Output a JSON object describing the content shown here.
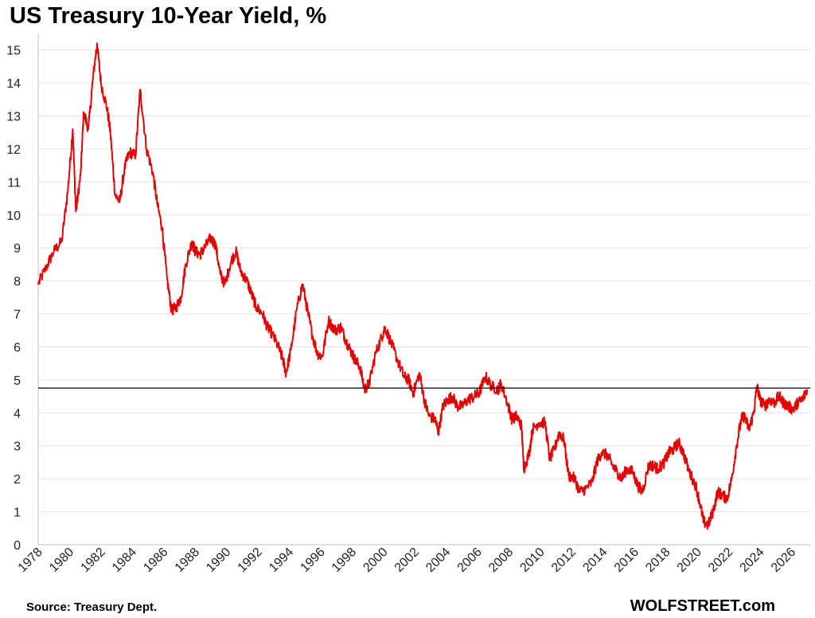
{
  "chart_data": {
    "type": "line",
    "title": "US Treasury 10-Year Yield, %",
    "xlabel": "",
    "ylabel": "",
    "ylim": [
      0,
      15.5
    ],
    "xlim": [
      1978,
      2027.2
    ],
    "y_ticks": [
      "0",
      "1",
      "2",
      "3",
      "4",
      "5",
      "6",
      "7",
      "8",
      "9",
      "10",
      "11",
      "12",
      "13",
      "14",
      "15"
    ],
    "x_ticks": [
      "1978",
      "1980",
      "1982",
      "1984",
      "1986",
      "1988",
      "1990",
      "1992",
      "1994",
      "1996",
      "1998",
      "2000",
      "2002",
      "2004",
      "2006",
      "2008",
      "2010",
      "2012",
      "2014",
      "2016",
      "2018",
      "2020",
      "2022",
      "2024",
      "2026"
    ],
    "grid": "horizontal",
    "reference_line": {
      "y": 4.75,
      "color": "#000000"
    },
    "series": [
      {
        "color": "#e60000",
        "x": [
          1978.0,
          1978.5,
          1979.0,
          1979.5,
          1979.9,
          1980.2,
          1980.4,
          1980.7,
          1980.9,
          1981.2,
          1981.5,
          1981.75,
          1982.0,
          1982.4,
          1982.6,
          1982.9,
          1983.2,
          1983.5,
          1983.8,
          1984.2,
          1984.5,
          1984.9,
          1985.3,
          1985.6,
          1985.9,
          1986.2,
          1986.5,
          1986.8,
          1987.1,
          1987.4,
          1987.8,
          1988.0,
          1988.3,
          1988.6,
          1989.0,
          1989.3,
          1989.6,
          1989.9,
          1990.3,
          1990.6,
          1990.9,
          1991.3,
          1991.6,
          1991.9,
          1992.3,
          1992.6,
          1992.9,
          1993.3,
          1993.6,
          1993.8,
          1994.1,
          1994.5,
          1994.85,
          1995.2,
          1995.5,
          1995.8,
          1996.1,
          1996.5,
          1996.9,
          1997.3,
          1997.6,
          1997.9,
          1998.2,
          1998.5,
          1998.8,
          1999.1,
          1999.5,
          1999.9,
          2000.1,
          2000.5,
          2000.9,
          2001.3,
          2001.6,
          2001.9,
          2002.3,
          2002.6,
          2002.9,
          2003.3,
          2003.5,
          2003.8,
          2004.1,
          2004.4,
          2004.7,
          2005.0,
          2005.4,
          2005.8,
          2006.1,
          2006.5,
          2006.9,
          2007.3,
          2007.5,
          2007.9,
          2008.2,
          2008.5,
          2008.8,
          2008.95,
          2009.3,
          2009.5,
          2009.9,
          2010.3,
          2010.6,
          2010.9,
          2011.2,
          2011.5,
          2011.8,
          2012.2,
          2012.5,
          2012.9,
          2013.3,
          2013.6,
          2013.9,
          2014.3,
          2014.6,
          2014.9,
          2015.2,
          2015.5,
          2015.9,
          2016.2,
          2016.5,
          2016.9,
          2017.2,
          2017.5,
          2017.9,
          2018.2,
          2018.5,
          2018.8,
          2019.1,
          2019.5,
          2019.9,
          2020.2,
          2020.4,
          2020.7,
          2021.0,
          2021.3,
          2021.6,
          2021.9,
          2022.2,
          2022.5,
          2022.8,
          2023.0,
          2023.3,
          2023.6,
          2023.8,
          2024.0,
          2024.3,
          2024.6,
          2024.9,
          2025.2,
          2025.5,
          2025.8,
          2026.1,
          2026.4,
          2026.7,
          2027.0
        ],
        "values": [
          7.9,
          8.4,
          8.9,
          9.2,
          10.8,
          12.6,
          10.1,
          11.2,
          13.1,
          12.6,
          14.2,
          15.2,
          14.0,
          13.2,
          12.5,
          10.6,
          10.4,
          11.4,
          11.9,
          11.8,
          13.8,
          12.0,
          11.3,
          10.3,
          9.6,
          8.1,
          7.1,
          7.2,
          7.5,
          8.5,
          9.2,
          8.9,
          8.8,
          9.0,
          9.3,
          9.1,
          8.2,
          7.9,
          8.6,
          8.9,
          8.3,
          8.0,
          7.6,
          7.2,
          7.0,
          6.6,
          6.4,
          6.0,
          5.6,
          5.2,
          5.9,
          7.2,
          7.9,
          7.0,
          6.3,
          5.8,
          5.7,
          6.8,
          6.5,
          6.6,
          6.2,
          5.9,
          5.6,
          5.4,
          4.7,
          4.9,
          5.8,
          6.3,
          6.6,
          6.1,
          5.6,
          5.1,
          5.0,
          4.6,
          5.2,
          4.4,
          3.9,
          3.8,
          3.4,
          4.2,
          4.4,
          4.5,
          4.2,
          4.2,
          4.4,
          4.5,
          4.6,
          5.1,
          4.8,
          4.7,
          4.9,
          4.3,
          3.8,
          3.9,
          3.6,
          2.3,
          2.8,
          3.5,
          3.7,
          3.7,
          2.6,
          2.9,
          3.4,
          3.2,
          2.1,
          2.0,
          1.6,
          1.7,
          1.9,
          2.5,
          2.8,
          2.7,
          2.4,
          2.2,
          2.0,
          2.3,
          2.2,
          1.8,
          1.6,
          2.4,
          2.4,
          2.3,
          2.5,
          2.8,
          2.9,
          3.1,
          2.8,
          2.2,
          1.8,
          1.2,
          0.7,
          0.6,
          1.0,
          1.6,
          1.5,
          1.4,
          2.0,
          3.0,
          3.8,
          3.9,
          3.5,
          4.0,
          4.8,
          4.4,
          4.2,
          4.4,
          4.3,
          4.5,
          4.3,
          4.2,
          4.1,
          4.3,
          4.4,
          4.7
        ]
      }
    ]
  },
  "footer": {
    "source": "Source: Treasury Dept.",
    "brand": "WOLFSTREET.com"
  }
}
